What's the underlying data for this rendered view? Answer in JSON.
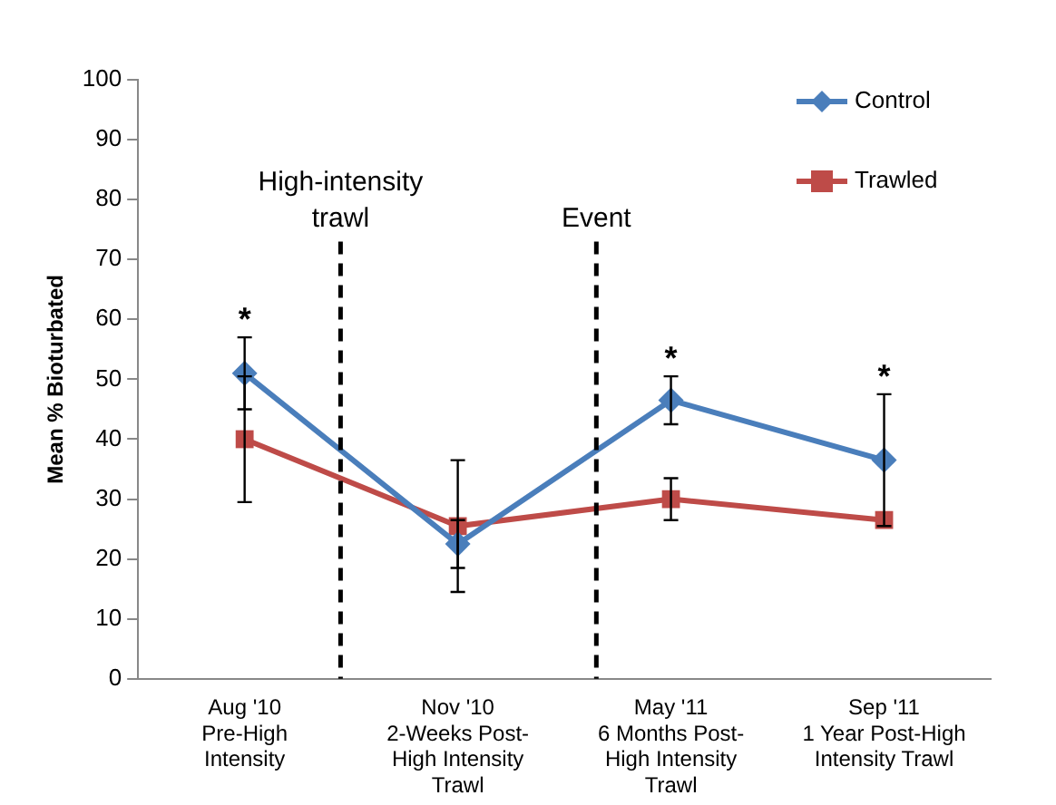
{
  "chart_data": {
    "type": "line",
    "ylabel": "Mean % Bioturbated",
    "categories": [
      "Aug '10\nPre-High\nIntensity",
      "Nov '10\n2-Weeks Post-\nHigh Intensity\nTrawl",
      "May '11\n6 Months Post-\nHigh Intensity\nTrawl",
      "Sep '11\n1 Year Post-High\nIntensity Trawl"
    ],
    "series": [
      {
        "name": "Control",
        "color": "#4a7ebb",
        "marker": "diamond",
        "values": [
          51,
          22.5,
          46.5,
          36.5
        ],
        "errors": [
          6,
          4,
          4,
          11
        ]
      },
      {
        "name": "Trawled",
        "color": "#be4b48",
        "marker": "square",
        "values": [
          40,
          25.5,
          30,
          26.5
        ],
        "errors": [
          10.5,
          11,
          3.5,
          null
        ]
      }
    ],
    "ylim": [
      0,
      100
    ],
    "yticks": [
      0,
      10,
      20,
      30,
      40,
      50,
      60,
      70,
      80,
      90,
      100
    ],
    "grid": false,
    "legend": "top right",
    "line_style": "solid",
    "annotations": [
      "High-intensity trawl",
      "Event",
      {
        "text": "*",
        "x": "Aug '10\nPre-High\nIntensity",
        "y": 51
      },
      {
        "text": "*",
        "x": "May '11\n6 Months Post-\nHigh Intensity\nTrawl",
        "y": 46.5
      },
      {
        "text": "*",
        "x": "Sep '11\n1 Year Post-High\nIntensity Trawl",
        "y": 36.5
      }
    ]
  }
}
